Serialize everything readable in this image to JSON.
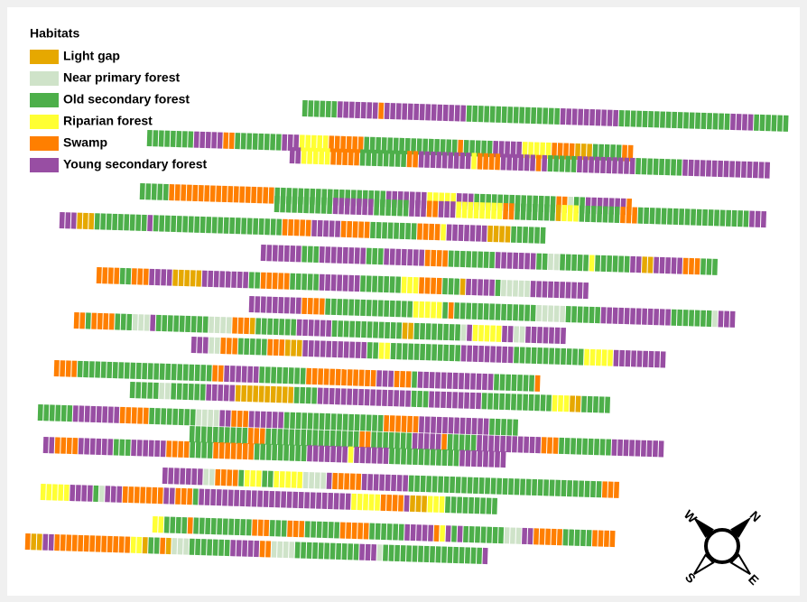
{
  "legend": {
    "title": "Habitats",
    "items": [
      {
        "label": "Light gap",
        "color": "#e6a800"
      },
      {
        "label": "Near primary forest",
        "color": "#cfe3c9"
      },
      {
        "label": "Old secondary forest",
        "color": "#4daf4a"
      },
      {
        "label": "Riparian forest",
        "color": "#ffff33"
      },
      {
        "label": "Swamp",
        "color": "#ff7f00"
      },
      {
        "label": "Young secondary forest",
        "color": "#984ea3"
      }
    ]
  },
  "compass": {
    "w": "W",
    "n": "N",
    "s": "S",
    "e": "E"
  }
}
